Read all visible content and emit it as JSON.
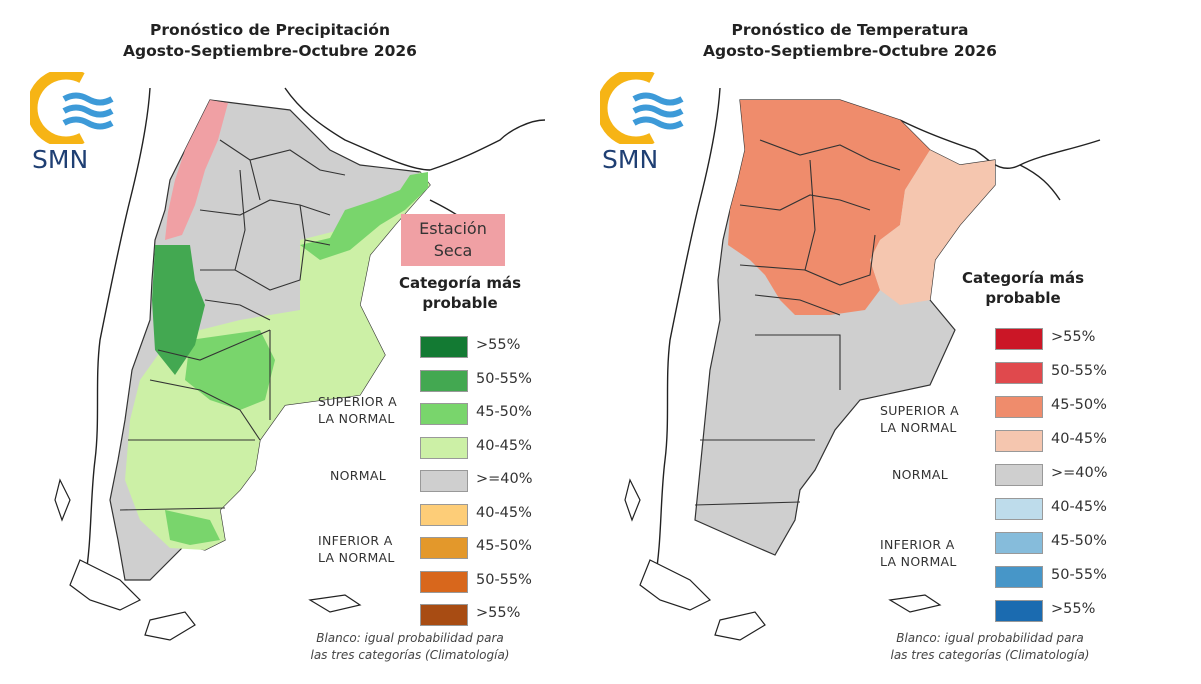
{
  "left_panel": {
    "title_line1": "Pronóstico de Precipitación",
    "title_line2": "Agosto-Septiembre-Octubre 2026",
    "logo_text": "SMN",
    "dry_season_label_line1": "Estación",
    "dry_season_label_line2": "Seca",
    "legend_title_line1": "Categoría más",
    "legend_title_line2": "probable",
    "legend": [
      {
        "label": ">55%",
        "color": "#137a33"
      },
      {
        "label": "50-55%",
        "color": "#43a851"
      },
      {
        "label": "45-50%",
        "color": "#79d56c"
      },
      {
        "label": "40-45%",
        "color": "#ccf0a6"
      },
      {
        "label": ">=40%",
        "color": "#cfcfcf"
      },
      {
        "label": "40-45%",
        "color": "#fdcd78"
      },
      {
        "label": "45-50%",
        "color": "#e3982b"
      },
      {
        "label": "50-55%",
        "color": "#d8671c"
      },
      {
        "label": ">55%",
        "color": "#a84c13"
      }
    ],
    "groups": {
      "superior_line1": "SUPERIOR A",
      "superior_line2": "LA NORMAL",
      "normal": "NORMAL",
      "inferior_line1": "INFERIOR A",
      "inferior_line2": "LA NORMAL"
    },
    "note_line1": "Blanco: igual probabilidad para",
    "note_line2": "las tres categorías (Climatología)"
  },
  "right_panel": {
    "title_line1": "Pronóstico de Temperatura",
    "title_line2": "Agosto-Septiembre-Octubre 2026",
    "logo_text": "SMN",
    "legend_title_line1": "Categoría más",
    "legend_title_line2": "probable",
    "legend": [
      {
        "label": ">55%",
        "color": "#cb1626"
      },
      {
        "label": "50-55%",
        "color": "#e0494d"
      },
      {
        "label": "45-50%",
        "color": "#ef8c6c"
      },
      {
        "label": "40-45%",
        "color": "#f5c6af"
      },
      {
        "label": ">=40%",
        "color": "#cfcfcf"
      },
      {
        "label": "40-45%",
        "color": "#bedceb"
      },
      {
        "label": "45-50%",
        "color": "#86bcdb"
      },
      {
        "label": "50-55%",
        "color": "#4796c8"
      },
      {
        "label": ">55%",
        "color": "#1b6bb0"
      }
    ],
    "groups": {
      "superior_line1": "SUPERIOR A",
      "superior_line2": "LA NORMAL",
      "normal": "NORMAL",
      "inferior_line1": "INFERIOR A",
      "inferior_line2": "LA NORMAL"
    },
    "note_line1": "Blanco: igual probabilidad para",
    "note_line2": "las tres categorías (Climatología)"
  },
  "colors": {
    "logo_sun": "#f6b415",
    "logo_waves": "#3d9ad8",
    "logo_text": "#1f3f73",
    "dry_season": "#f0a0a4",
    "boundary": "#333333"
  }
}
